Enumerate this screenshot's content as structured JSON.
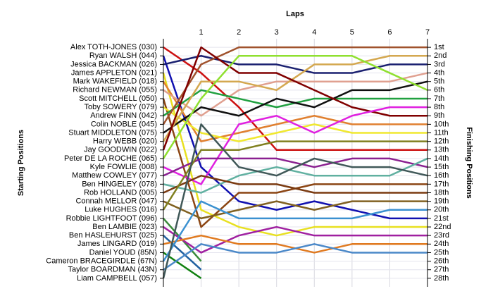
{
  "chart_data": {
    "type": "line",
    "title": "Laps",
    "y_label": "Starting Positions",
    "y2_label": "Finishing Positions",
    "x": [
      0,
      1,
      2,
      3,
      4,
      5,
      6,
      7
    ],
    "xlim": [
      0,
      7
    ],
    "xticks": [
      1,
      2,
      3,
      4,
      5,
      6,
      7
    ],
    "ylim": [
      29,
      0
    ],
    "yticks": [
      {
        "value": 1,
        "label": "1st"
      },
      {
        "value": 2,
        "label": "2nd"
      },
      {
        "value": 3,
        "label": "3rd"
      },
      {
        "value": 4,
        "label": "4th"
      },
      {
        "value": 5,
        "label": "5th"
      },
      {
        "value": 6,
        "label": "6th"
      },
      {
        "value": 7,
        "label": "7th"
      },
      {
        "value": 8,
        "label": "8th"
      },
      {
        "value": 9,
        "label": "9th"
      },
      {
        "value": 10,
        "label": "10th"
      },
      {
        "value": 11,
        "label": "11th"
      },
      {
        "value": 12,
        "label": "12th"
      },
      {
        "value": 13,
        "label": "13th"
      },
      {
        "value": 14,
        "label": "14th"
      },
      {
        "value": 15,
        "label": "15th"
      },
      {
        "value": 16,
        "label": "16th"
      },
      {
        "value": 17,
        "label": "17th"
      },
      {
        "value": 18,
        "label": "18th"
      },
      {
        "value": 19,
        "label": "19th"
      },
      {
        "value": 20,
        "label": "20th"
      },
      {
        "value": 21,
        "label": "21st"
      },
      {
        "value": 22,
        "label": "22nd"
      },
      {
        "value": 23,
        "label": "23rd"
      },
      {
        "value": 24,
        "label": "24th"
      },
      {
        "value": 25,
        "label": "25th"
      },
      {
        "value": 26,
        "label": "26th"
      },
      {
        "value": 27,
        "label": "27th"
      },
      {
        "value": 28,
        "label": "28th"
      }
    ],
    "grid": true,
    "series": [
      {
        "name": "Alex TOTH-JONES (030)",
        "color": "#cc1010",
        "values": [
          1,
          4,
          8,
          13,
          13,
          13,
          13,
          13
        ]
      },
      {
        "name": "Ryan WALSH (044)",
        "color": "#1010b0",
        "values": [
          2,
          15,
          19,
          20,
          19,
          20,
          21,
          21
        ]
      },
      {
        "name": "Jessica BACKMAN (026)",
        "color": "#1a2070",
        "values": [
          3,
          2,
          3,
          3,
          4,
          4,
          3,
          3
        ]
      },
      {
        "name": "James APPLETON (021)",
        "color": "#e8e020",
        "values": [
          4,
          20,
          22,
          23,
          22,
          22,
          22,
          22
        ]
      },
      {
        "name": "Mark WAKEFIELD (018)",
        "color": "#e08030",
        "values": [
          5,
          12,
          11,
          10,
          9,
          10,
          10,
          10
        ]
      },
      {
        "name": "Richard NEWMAN (055)",
        "color": "#e0a090",
        "values": [
          6,
          9,
          6,
          5,
          5,
          5,
          5,
          4
        ]
      },
      {
        "name": "Scott MITCHELL (050)",
        "color": "#8b4513",
        "values": [
          7,
          22,
          18,
          18,
          17,
          17,
          17,
          17
        ]
      },
      {
        "name": "Toby SOWERY (079)",
        "color": "#f0e830",
        "values": [
          8,
          11,
          12,
          11,
          10,
          11,
          11,
          11
        ]
      },
      {
        "name": "Andrew FINN (042)",
        "color": "#20a040",
        "values": [
          9,
          6,
          7,
          8,
          7,
          7,
          7,
          7
        ]
      },
      {
        "name": "Colin NOBLE (045)",
        "color": "#a0522d",
        "values": [
          10,
          3,
          1,
          1,
          1,
          1,
          1,
          1
        ]
      },
      {
        "name": "Stuart MIDDLETON (075)",
        "color": "#101010",
        "values": [
          11,
          8,
          9,
          7,
          8,
          6,
          6,
          5
        ]
      },
      {
        "name": "Harry WEBB (020)",
        "color": "#d4a850",
        "values": [
          12,
          5,
          5,
          6,
          3,
          3,
          2,
          2
        ]
      },
      {
        "name": "Jay GOODWIN (022)",
        "color": "#800000",
        "values": [
          13,
          1,
          4,
          4,
          6,
          8,
          9,
          9
        ]
      },
      {
        "name": "Peter DE LA ROCHE (065)",
        "color": "#90e030",
        "values": [
          14,
          7,
          2,
          2,
          2,
          2,
          4,
          6
        ]
      },
      {
        "name": "Kyle FOWLIE (008)",
        "color": "#e020e0",
        "values": [
          15,
          17,
          10,
          9,
          11,
          9,
          8,
          8
        ]
      },
      {
        "name": "Matthew COWLEY (077)",
        "color": "#8a2090",
        "values": [
          16,
          14,
          14,
          14,
          15,
          14,
          14,
          15
        ]
      },
      {
        "name": "Ben HINGELEY (078)",
        "color": "#60b0a0",
        "values": [
          17,
          18,
          16,
          15,
          16,
          16,
          16,
          14
        ]
      },
      {
        "name": "Rob HOLLAND (005)",
        "color": "#7a3a10",
        "values": [
          18,
          16,
          17,
          17,
          18,
          18,
          18,
          18
        ]
      },
      {
        "name": "Connah MELLOR (047)",
        "color": "#806020",
        "values": [
          19,
          21,
          20,
          19,
          20,
          19,
          19,
          19
        ]
      },
      {
        "name": "Luke HUGHES (016)",
        "color": "#808020",
        "values": [
          20,
          13,
          13,
          12,
          12,
          12,
          12,
          12
        ]
      },
      {
        "name": "Robbie LIGHTFOOT (096)",
        "color": "#3a8a3a",
        "values": [
          21,
          26,
          null,
          null,
          null,
          null,
          null,
          null
        ]
      },
      {
        "name": "Ben LAMBIE (023)",
        "color": "#a020a0",
        "values": [
          22,
          25,
          23,
          22,
          23,
          23,
          23,
          23
        ]
      },
      {
        "name": "Ben HASLEHURST (025)",
        "color": "#2060a0",
        "values": [
          23,
          27,
          null,
          null,
          null,
          null,
          null,
          null
        ]
      },
      {
        "name": "James LINGARD (019)",
        "color": "#e07a20",
        "values": [
          24,
          23,
          24,
          24,
          25,
          24,
          24,
          24
        ]
      },
      {
        "name": "Daniel YOUD (85N)",
        "color": "#108010",
        "values": [
          25,
          28,
          null,
          null,
          null,
          null,
          null,
          null
        ]
      },
      {
        "name": "Cameron BRACEGIRDLE (67N)",
        "color": "#3a90d0",
        "values": [
          26,
          19,
          21,
          21,
          21,
          21,
          20,
          20
        ]
      },
      {
        "name": "Taylor BOARDMAN (43N)",
        "color": "#4a88c8",
        "values": [
          27,
          24,
          25,
          25,
          24,
          25,
          25,
          25
        ]
      },
      {
        "name": "Liam CAMPBELL (057)",
        "color": "#405858",
        "values": [
          28,
          10,
          15,
          16,
          14,
          15,
          15,
          16
        ]
      }
    ]
  }
}
